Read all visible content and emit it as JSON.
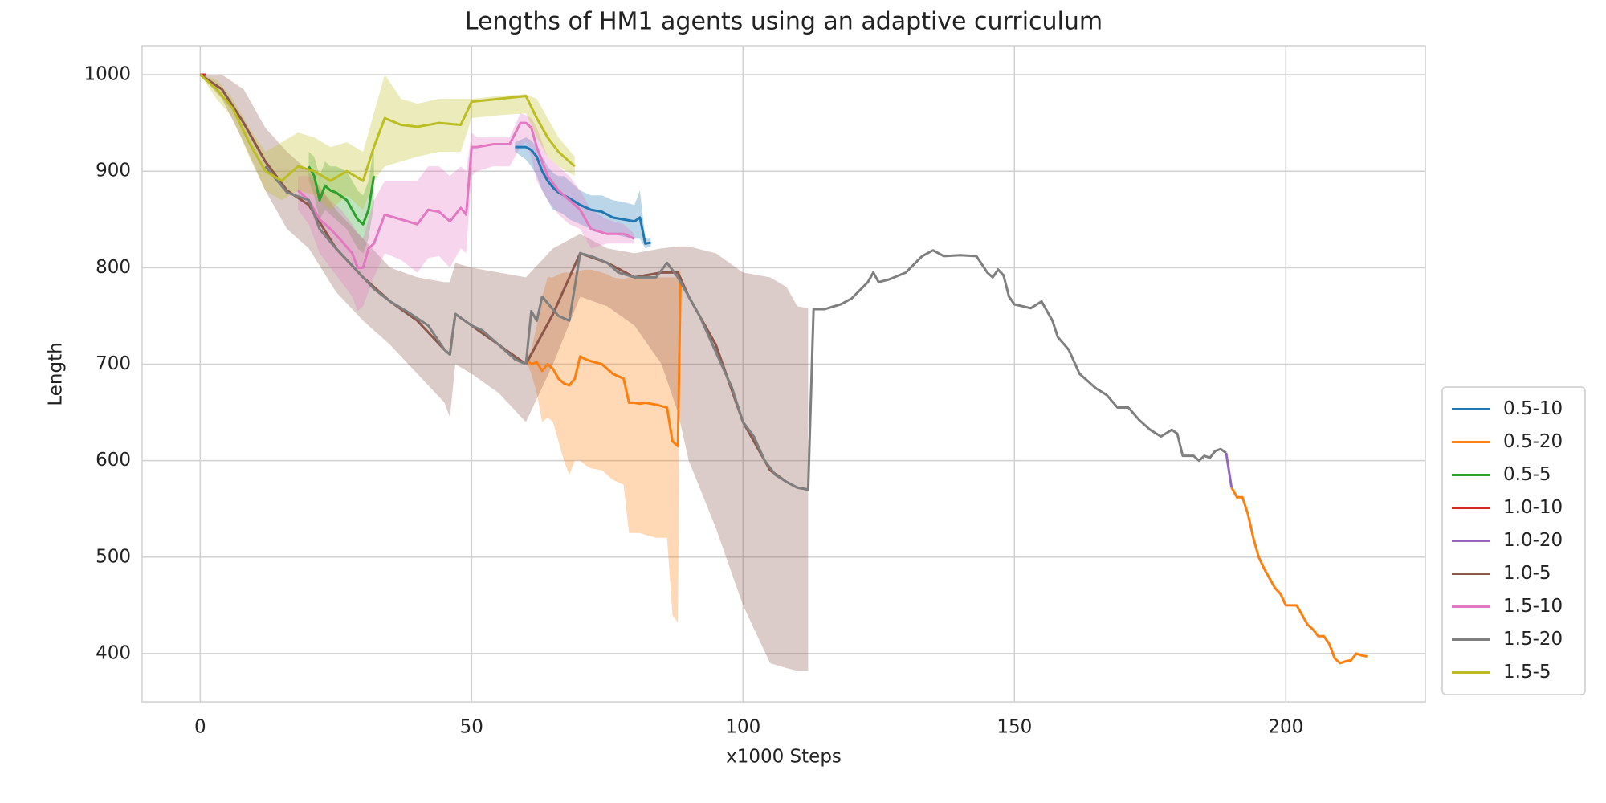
{
  "chart_data": {
    "type": "line",
    "title": "Lengths of HM1 agents using an adaptive curriculum",
    "xlabel": "x1000 Steps",
    "ylabel": "Length",
    "xlim": [
      -10.7,
      225.7
    ],
    "ylim": [
      350,
      1030
    ],
    "xticks": [
      0,
      50,
      100,
      150,
      200
    ],
    "yticks": [
      400,
      500,
      600,
      700,
      800,
      900,
      1000
    ],
    "grid": true,
    "legend_loc": "lower right",
    "series": [
      {
        "name": "0.5-10",
        "color": "#1f77b4",
        "x": [
          58,
          60,
          61,
          62,
          63,
          64,
          65,
          66,
          67,
          68,
          70,
          72,
          74,
          76,
          78,
          80,
          81,
          82,
          83
        ],
        "values": [
          925,
          925,
          922,
          915,
          900,
          890,
          883,
          878,
          875,
          872,
          865,
          860,
          858,
          852,
          850,
          848,
          852,
          825,
          826
        ],
        "lower": [
          920,
          912,
          905,
          895,
          880,
          870,
          860,
          858,
          855,
          850,
          845,
          840,
          838,
          835,
          832,
          830,
          830,
          820,
          822
        ],
        "upper": [
          930,
          935,
          932,
          925,
          915,
          905,
          898,
          895,
          895,
          890,
          880,
          875,
          875,
          870,
          868,
          865,
          880,
          830,
          830
        ]
      },
      {
        "name": "0.5-20",
        "color": "#ff7f0e",
        "x": [
          60,
          61,
          62,
          63,
          64,
          65,
          66,
          67,
          68,
          69,
          70,
          71,
          72,
          74,
          75,
          76,
          78,
          79,
          80,
          81,
          82,
          84,
          86,
          87,
          88,
          88.5,
          89,
          190,
          191,
          192,
          193,
          194,
          195,
          196,
          197,
          198,
          199,
          200,
          201,
          202,
          203,
          204,
          205,
          206,
          207,
          208,
          209,
          210,
          211,
          212,
          213,
          214,
          215
        ],
        "values": [
          705,
          700,
          702,
          693,
          700,
          695,
          685,
          680,
          678,
          685,
          708,
          705,
          703,
          700,
          695,
          690,
          685,
          660,
          660,
          659,
          660,
          658,
          655,
          620,
          615,
          790,
          null,
          572,
          562,
          562,
          545,
          520,
          500,
          488,
          478,
          468,
          462,
          450,
          450,
          450,
          440,
          430,
          425,
          418,
          418,
          410,
          395,
          390,
          392,
          393,
          400,
          398,
          397
        ],
        "lower": [
          705,
          690,
          670,
          640,
          645,
          640,
          620,
          600,
          585,
          600,
          600,
          595,
          592,
          590,
          585,
          580,
          575,
          525,
          525,
          525,
          523,
          520,
          520,
          440,
          432,
          770,
          null,
          null,
          null,
          null,
          null,
          null,
          null,
          null,
          null,
          null,
          null,
          null,
          null,
          null,
          null,
          null,
          null,
          null,
          null,
          null,
          null,
          null,
          null,
          null,
          null,
          null,
          null
        ],
        "upper": [
          705,
          715,
          740,
          770,
          790,
          790,
          793,
          795,
          795,
          795,
          797,
          798,
          798,
          795,
          793,
          790,
          788,
          790,
          790,
          790,
          790,
          790,
          790,
          790,
          790,
          800,
          null,
          null,
          null,
          null,
          null,
          null,
          null,
          null,
          null,
          null,
          null,
          null,
          null,
          null,
          null,
          null,
          null,
          null,
          null,
          null,
          null,
          null,
          null,
          null,
          null,
          null,
          null
        ]
      },
      {
        "name": "0.5-5",
        "color": "#2ca02c",
        "x": [
          20,
          21,
          22,
          23,
          24,
          25,
          27,
          29,
          30,
          31,
          32
        ],
        "values": [
          905,
          895,
          870,
          885,
          880,
          878,
          870,
          850,
          845,
          860,
          895
        ],
        "lower": [
          890,
          875,
          850,
          860,
          855,
          850,
          840,
          820,
          815,
          830,
          865
        ],
        "upper": [
          920,
          915,
          895,
          910,
          905,
          905,
          900,
          880,
          875,
          890,
          925
        ]
      },
      {
        "name": "1.0-10",
        "color": "#d62728",
        "x": [
          0,
          1
        ],
        "values": [
          1000,
          1000
        ]
      },
      {
        "name": "1.0-20",
        "color": "#9467bd",
        "x": [
          189,
          190
        ],
        "values": [
          608,
          572
        ]
      },
      {
        "name": "1.0-5",
        "color": "#8c564b",
        "x": [
          0,
          4,
          8,
          12,
          16,
          20,
          25,
          30,
          35,
          40,
          45,
          46,
          47,
          50,
          55,
          60,
          65,
          70,
          75,
          80,
          85,
          88,
          90,
          95,
          100,
          105,
          108,
          110,
          112
        ],
        "values": [
          1000,
          985,
          950,
          910,
          880,
          865,
          820,
          790,
          765,
          745,
          715,
          710,
          752,
          740,
          720,
          700,
          752,
          815,
          805,
          790,
          795,
          795,
          770,
          720,
          640,
          590,
          578,
          572,
          570
        ],
        "lower": [
          1000,
          975,
          930,
          880,
          840,
          820,
          775,
          745,
          720,
          690,
          660,
          645,
          700,
          690,
          670,
          640,
          700,
          770,
          760,
          740,
          700,
          650,
          600,
          530,
          450,
          390,
          385,
          382,
          382
        ],
        "upper": [
          1000,
          1000,
          985,
          945,
          920,
          900,
          860,
          830,
          800,
          790,
          785,
          785,
          805,
          800,
          795,
          790,
          820,
          835,
          820,
          815,
          820,
          822,
          822,
          815,
          795,
          790,
          780,
          760,
          758
        ]
      },
      {
        "name": "1.5-10",
        "color": "#e377c2",
        "x": [
          18,
          20,
          22,
          24,
          26,
          28,
          29,
          30,
          31,
          32,
          34,
          37,
          40,
          42,
          44,
          46,
          48,
          49,
          50,
          51,
          54,
          57,
          59,
          60,
          61,
          62,
          64,
          66,
          68,
          70,
          72,
          75,
          78,
          80
        ],
        "values": [
          880,
          870,
          850,
          840,
          828,
          815,
          800,
          800,
          820,
          825,
          855,
          850,
          845,
          860,
          858,
          848,
          862,
          855,
          925,
          925,
          928,
          928,
          950,
          950,
          945,
          925,
          895,
          880,
          870,
          860,
          840,
          835,
          835,
          830
        ],
        "lower": [
          860,
          845,
          815,
          800,
          785,
          770,
          755,
          760,
          775,
          790,
          815,
          808,
          795,
          810,
          812,
          800,
          820,
          815,
          895,
          900,
          905,
          905,
          925,
          930,
          915,
          890,
          870,
          855,
          845,
          840,
          820,
          825,
          825,
          825
        ],
        "upper": [
          895,
          895,
          880,
          870,
          860,
          845,
          835,
          830,
          850,
          870,
          890,
          890,
          890,
          905,
          905,
          895,
          905,
          900,
          940,
          935,
          935,
          935,
          960,
          958,
          955,
          945,
          915,
          905,
          895,
          880,
          860,
          850,
          845,
          835
        ]
      },
      {
        "name": "1.5-20",
        "color": "#7f7f7f",
        "x": [
          12,
          16,
          20,
          22,
          25,
          30,
          32,
          35,
          38,
          42,
          45,
          46,
          47,
          50,
          52,
          55,
          58,
          60,
          61,
          62,
          63,
          66,
          68,
          70,
          72,
          75,
          77,
          80,
          84,
          86,
          88,
          90,
          92,
          94,
          96,
          98,
          100,
          102,
          104,
          106,
          108,
          110,
          112,
          113,
          115,
          118,
          120,
          123,
          124,
          125,
          127,
          130,
          133,
          135,
          137,
          140,
          143,
          145,
          146,
          147,
          148,
          149,
          150,
          153,
          155,
          157,
          158,
          160,
          162,
          163,
          165,
          167,
          169,
          171,
          173,
          175,
          177,
          179,
          180,
          181,
          183,
          184,
          185,
          186,
          187,
          188,
          189
        ],
        "values": [
          905,
          878,
          870,
          840,
          820,
          790,
          778,
          765,
          755,
          740,
          715,
          710,
          752,
          740,
          735,
          720,
          705,
          700,
          755,
          745,
          770,
          750,
          745,
          815,
          812,
          805,
          795,
          790,
          790,
          805,
          790,
          770,
          750,
          725,
          700,
          675,
          640,
          625,
          600,
          585,
          578,
          572,
          570,
          757,
          757,
          762,
          768,
          785,
          795,
          785,
          788,
          795,
          812,
          818,
          812,
          813,
          812,
          795,
          790,
          798,
          792,
          770,
          762,
          758,
          765,
          745,
          728,
          715,
          690,
          685,
          675,
          668,
          655,
          655,
          642,
          632,
          625,
          632,
          628,
          605,
          605,
          600,
          605,
          603,
          610,
          612,
          608
        ]
      },
      {
        "name": "1.5-5",
        "color": "#bcbd22",
        "x": [
          0,
          3,
          6,
          9,
          12,
          15,
          18,
          21,
          24,
          27,
          30,
          32,
          34,
          37,
          40,
          44,
          48,
          50,
          55,
          60,
          62,
          64,
          66,
          69
        ],
        "values": [
          1000,
          985,
          965,
          930,
          900,
          890,
          905,
          900,
          890,
          900,
          890,
          925,
          955,
          948,
          946,
          950,
          948,
          972,
          975,
          978,
          955,
          935,
          920,
          905
        ],
        "lower": [
          1000,
          975,
          955,
          915,
          880,
          870,
          880,
          875,
          860,
          875,
          860,
          890,
          905,
          910,
          915,
          920,
          920,
          955,
          958,
          960,
          935,
          915,
          905,
          895
        ],
        "upper": [
          1000,
          995,
          975,
          945,
          920,
          930,
          940,
          935,
          925,
          930,
          920,
          960,
          1000,
          975,
          970,
          975,
          975,
          975,
          978,
          980,
          975,
          955,
          935,
          915
        ]
      }
    ]
  }
}
